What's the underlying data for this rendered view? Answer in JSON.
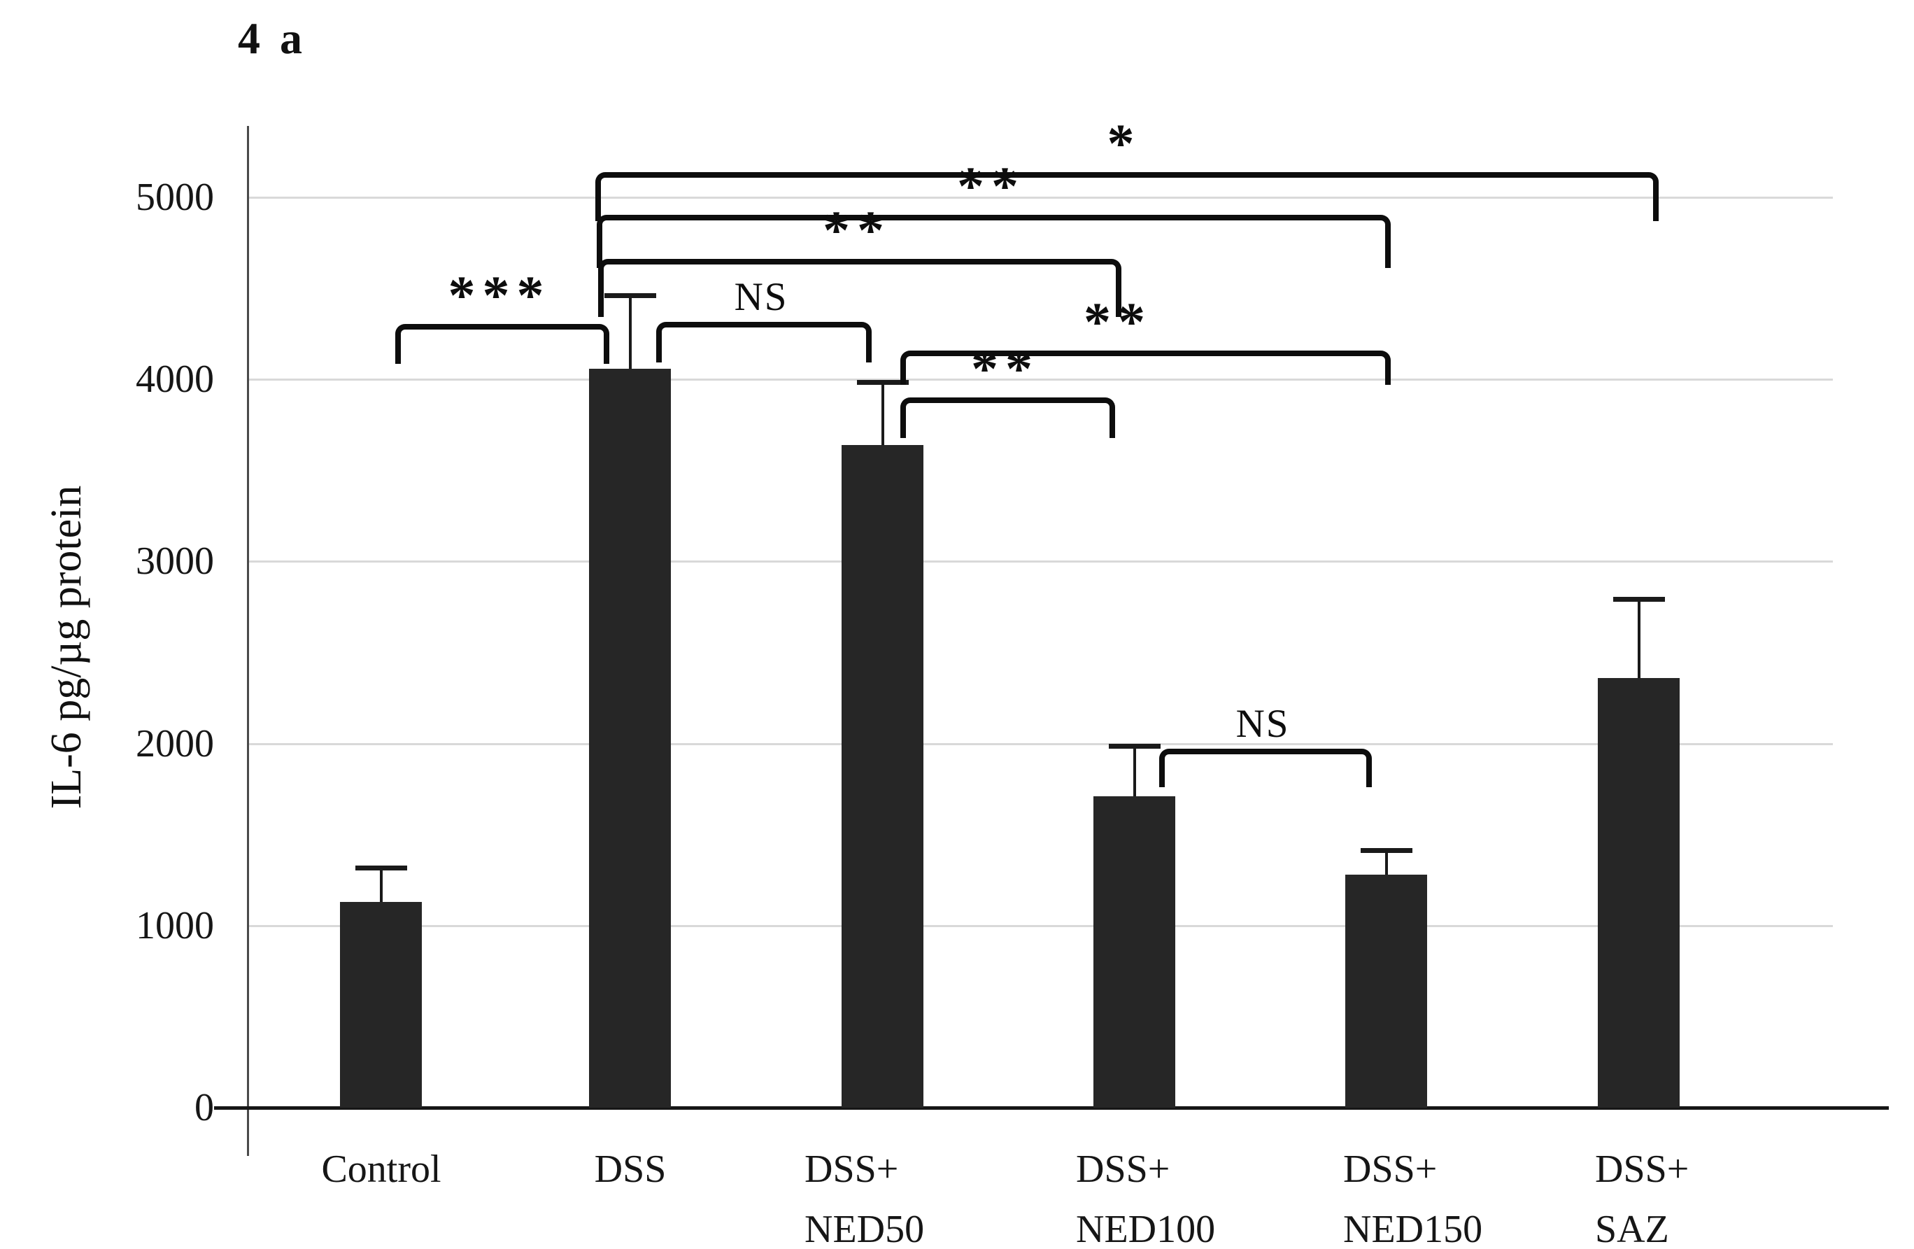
{
  "figure": {
    "panel_label": "4 a"
  },
  "axis": {
    "y_title": "IL-6 pg/µg protein"
  },
  "chart_data": {
    "type": "bar",
    "title": "4 a",
    "xlabel": "",
    "ylabel": "IL-6 pg/µg protein",
    "ylim": [
      0,
      5300
    ],
    "yticks": [
      0,
      1000,
      2000,
      3000,
      4000,
      5000
    ],
    "grid": "horizontal-light-gray",
    "legend": "none",
    "bar_color": "#262626",
    "categories": [
      "Control",
      "DSS",
      "DSS+ NED50",
      "DSS+ NED100",
      "DSS+ NED150",
      "DSS+ SAZ"
    ],
    "values": [
      1130,
      4060,
      3640,
      1710,
      1280,
      2360
    ],
    "errors_plus": [
      200,
      415,
      355,
      290,
      145,
      445
    ],
    "significance": [
      {
        "between": [
          "Control",
          "DSS"
        ],
        "label": "***"
      },
      {
        "between": [
          "DSS",
          "DSS+ NED50"
        ],
        "label": "NS"
      },
      {
        "between": [
          "DSS",
          "DSS+ NED100"
        ],
        "label": "**"
      },
      {
        "between": [
          "DSS",
          "DSS+ NED150"
        ],
        "label": "**"
      },
      {
        "between": [
          "DSS",
          "DSS+ SAZ"
        ],
        "label": "*"
      },
      {
        "between": [
          "DSS+ NED50",
          "DSS+ NED100"
        ],
        "label": "**"
      },
      {
        "between": [
          "DSS+ NED50",
          "DSS+ NED150"
        ],
        "label": "**"
      },
      {
        "between": [
          "DSS+ NED100",
          "DSS+ NED150"
        ],
        "label": "NS"
      }
    ]
  },
  "x_labels": [
    [
      "Control"
    ],
    [
      "DSS"
    ],
    [
      "DSS+",
      "NED50"
    ],
    [
      "DSS+",
      "NED100"
    ],
    [
      "DSS+",
      "NED150"
    ],
    [
      "DSS+",
      "SAZ"
    ]
  ]
}
